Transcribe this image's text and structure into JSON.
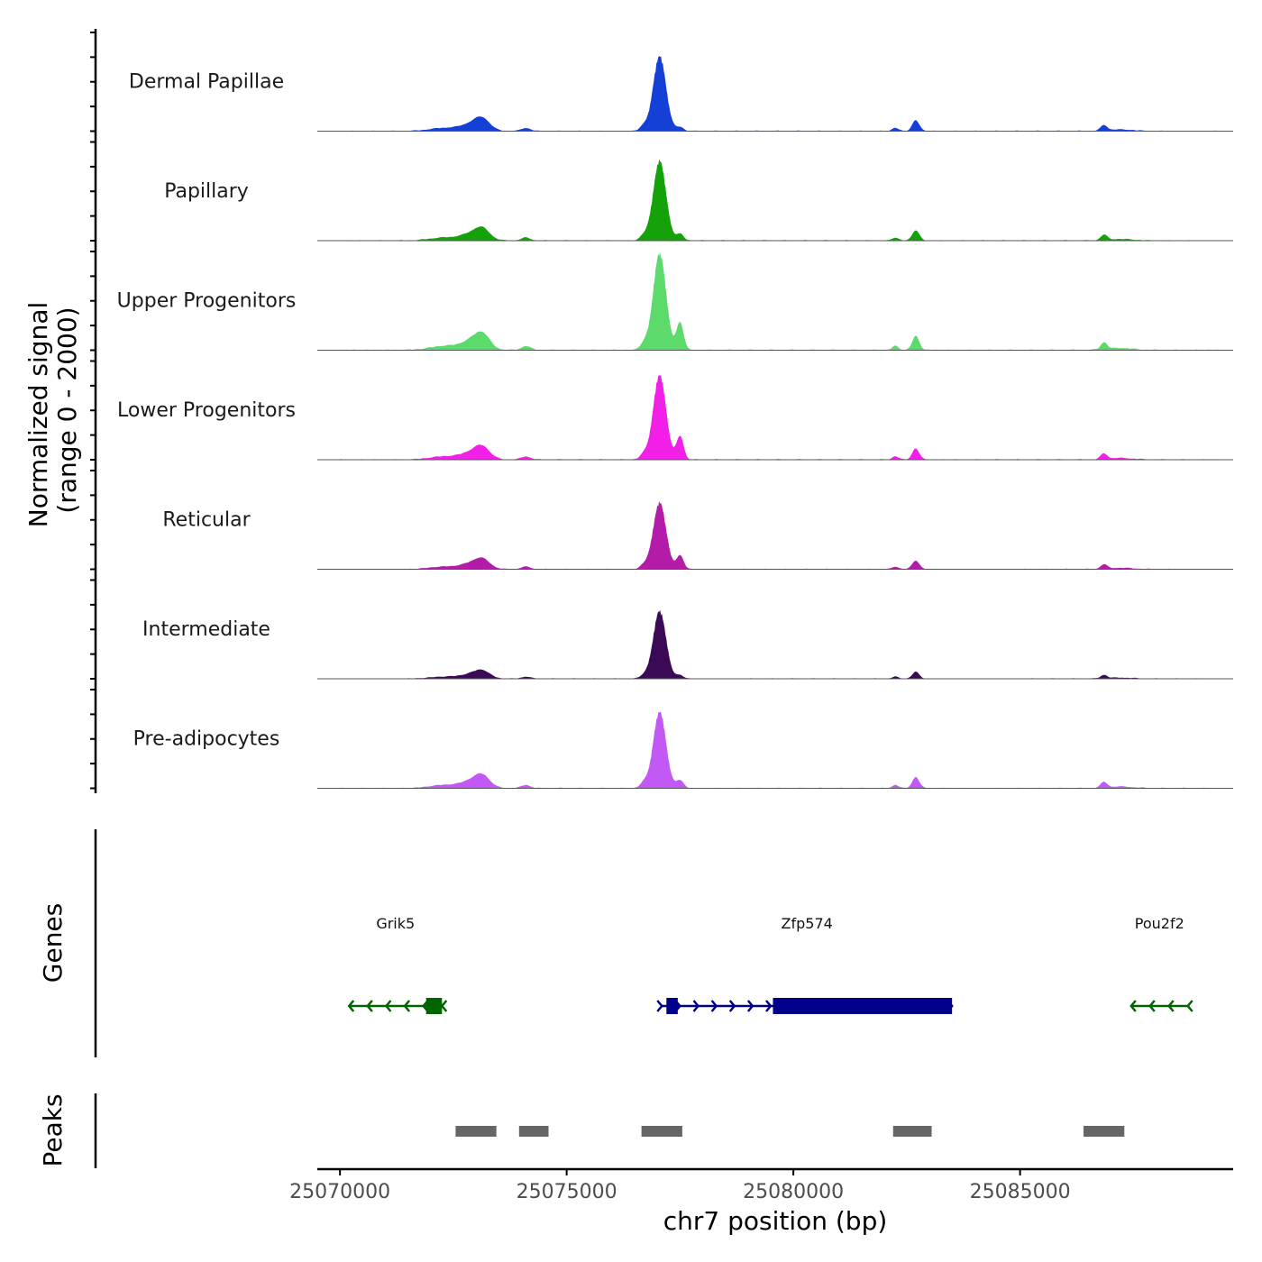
{
  "chart_data": {
    "type": "area",
    "chromosome": "chr7",
    "xlabel": "chr7 position (bp)",
    "ylabel_line1": "Normalized signal",
    "ylabel_line2": "(range 0 - 2000)",
    "y_range": [
      0,
      2000
    ],
    "xlim": [
      25069500,
      25089700
    ],
    "x_ticks": [
      25070000,
      25075000,
      25080000,
      25085000
    ],
    "x_tick_labels": [
      "25070000",
      "25075000",
      "25080000",
      "25085000"
    ],
    "peak_shape_template": [
      {
        "center": 25072300,
        "width": 450,
        "rel": 0.04
      },
      {
        "center": 25072950,
        "width": 350,
        "rel": 0.1
      },
      {
        "center": 25073150,
        "width": 220,
        "rel": 0.11
      },
      {
        "center": 25074100,
        "width": 140,
        "rel": 0.04
      },
      {
        "center": 25076700,
        "width": 120,
        "rel": 0.06
      },
      {
        "center": 25077050,
        "width": 200,
        "rel": 0.95
      },
      {
        "center": 25077500,
        "width": 110,
        "rel": 0.3
      },
      {
        "center": 25082250,
        "width": 100,
        "rel": 0.04
      },
      {
        "center": 25082700,
        "width": 110,
        "rel": 0.14
      },
      {
        "center": 25086850,
        "width": 100,
        "rel": 0.07
      },
      {
        "center": 25087200,
        "width": 400,
        "rel": 0.02
      }
    ],
    "series": [
      {
        "name": "Dermal Papillae",
        "color": "#1440D6",
        "peak_value": 1550,
        "second_rel": 0.05,
        "flank_rel": 1.0
      },
      {
        "name": "Papillary",
        "color": "#15A10A",
        "peak_value": 1650,
        "second_rel": 0.08,
        "flank_rel": 0.9
      },
      {
        "name": "Upper Progenitors",
        "color": "#5CDB6C",
        "peak_value": 2000,
        "second_rel": 0.28,
        "flank_rel": 1.0
      },
      {
        "name": "Lower Progenitors",
        "color": "#F21FE8",
        "peak_value": 1750,
        "second_rel": 0.27,
        "flank_rel": 0.9
      },
      {
        "name": "Reticular",
        "color": "#B31BA8",
        "peak_value": 1380,
        "second_rel": 0.2,
        "flank_rel": 0.9
      },
      {
        "name": "Intermediate",
        "color": "#3A0A57",
        "peak_value": 1400,
        "second_rel": 0.05,
        "flank_rel": 0.7
      },
      {
        "name": "Pre-adipocytes",
        "color": "#C259F5",
        "peak_value": 1580,
        "second_rel": 0.1,
        "flank_rel": 1.0
      }
    ],
    "genes_track_label": "Genes",
    "genes": [
      {
        "name": "Grik5",
        "strand": "-",
        "start": 25070200,
        "end": 25072250,
        "color": "#006400",
        "exons": [
          [
            25071900,
            25072250
          ]
        ]
      },
      {
        "name": "Zfp574",
        "strand": "+",
        "start": 25077100,
        "end": 25083500,
        "color": "#00008B",
        "exons": [
          [
            25077200,
            25077450
          ],
          [
            25079550,
            25083500
          ]
        ]
      },
      {
        "name": "Pou2f2",
        "strand": "-",
        "start": 25087450,
        "end": 25088700,
        "color": "#006400",
        "exons": []
      }
    ],
    "peaks_track_label": "Peaks",
    "peaks_color": "#666666",
    "peaks": [
      [
        25072550,
        25073450
      ],
      [
        25073950,
        25074600
      ],
      [
        25076650,
        25077550
      ],
      [
        25082200,
        25083050
      ],
      [
        25086400,
        25087300
      ]
    ]
  }
}
